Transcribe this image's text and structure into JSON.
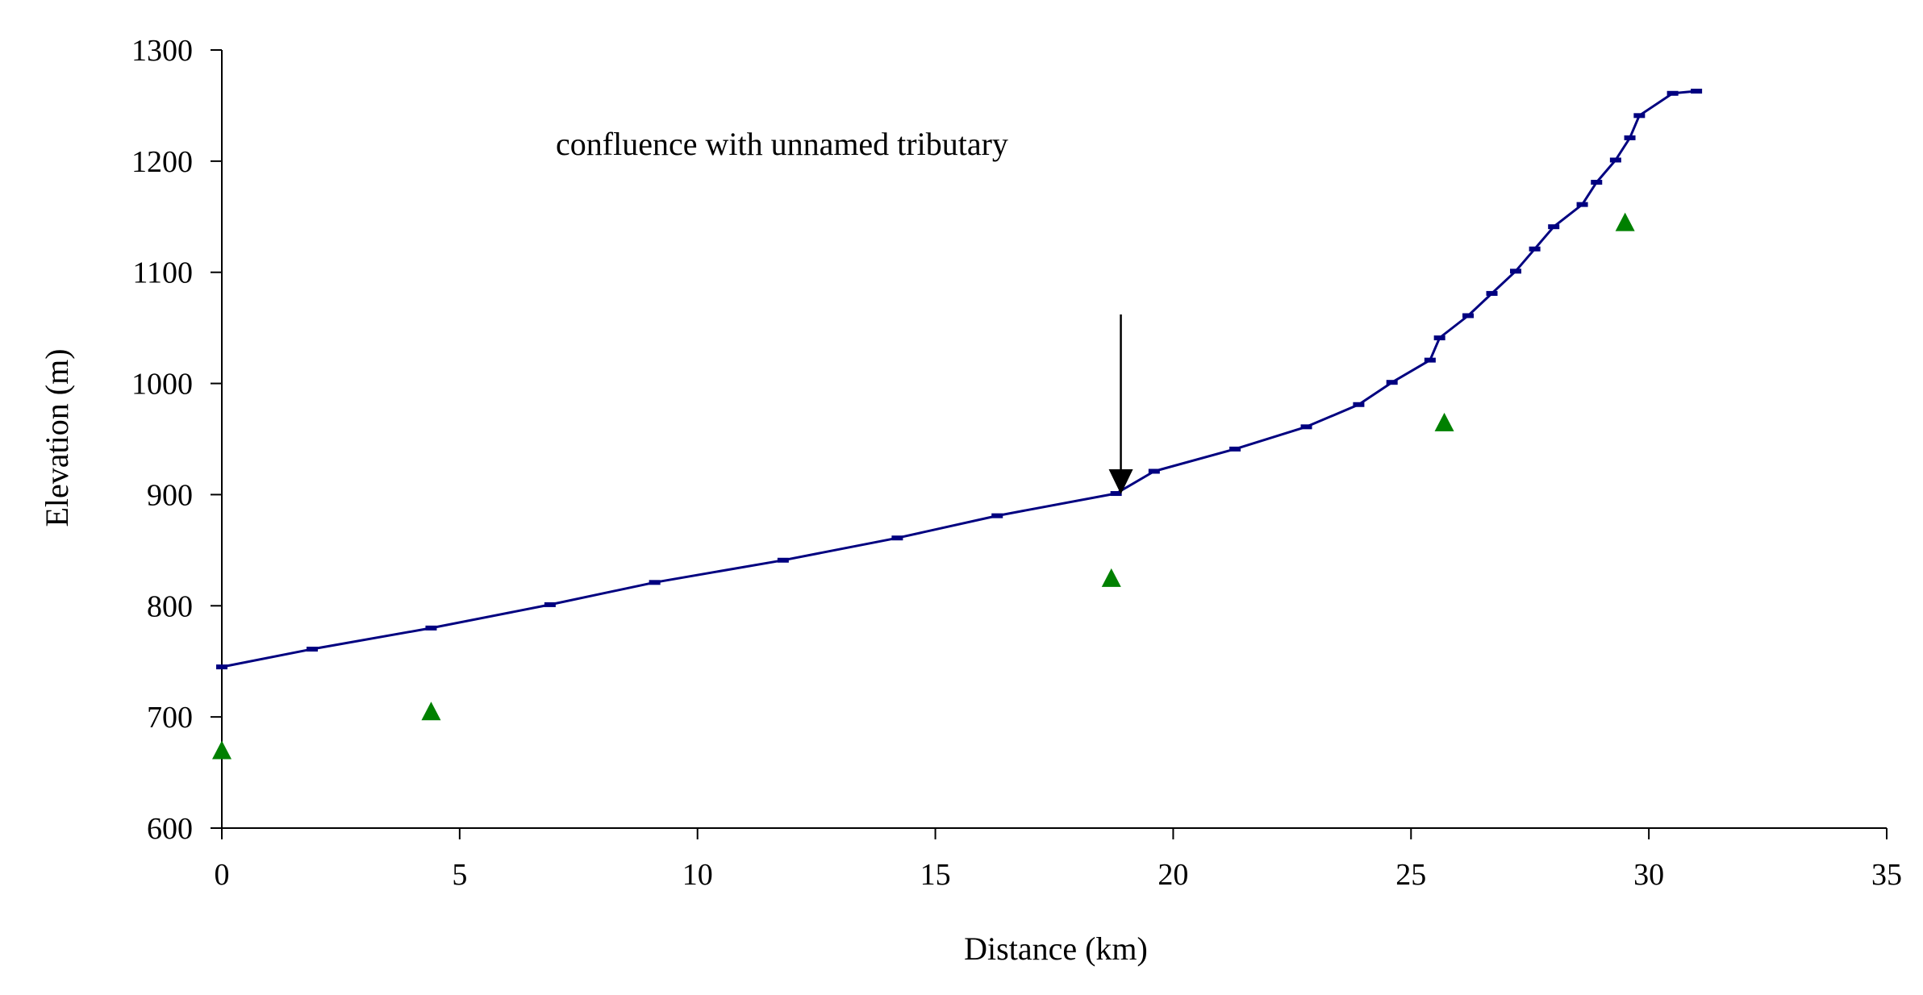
{
  "chart_data": {
    "type": "line",
    "xlabel": "Distance (km)",
    "ylabel": "Elevation (m)",
    "xlim": [
      0,
      35
    ],
    "ylim": [
      600,
      1300
    ],
    "xticks": [
      0,
      5,
      10,
      15,
      20,
      25,
      30,
      35
    ],
    "yticks": [
      600,
      700,
      800,
      900,
      1000,
      1100,
      1200,
      1300
    ],
    "grid": false,
    "legend": "none",
    "annotation": {
      "text": "confluence with unnamed tributary",
      "x": 18.9,
      "y": 901
    },
    "series": [
      {
        "style": "line",
        "color": "#000080",
        "points": [
          [
            0,
            745
          ],
          [
            1.9,
            761
          ],
          [
            4.4,
            780
          ],
          [
            6.9,
            801
          ],
          [
            9.1,
            821
          ],
          [
            11.8,
            841
          ],
          [
            14.2,
            861
          ],
          [
            16.3,
            881
          ],
          [
            18.8,
            901
          ],
          [
            19.6,
            921
          ],
          [
            21.3,
            941
          ],
          [
            22.8,
            961
          ],
          [
            23.9,
            981
          ],
          [
            24.6,
            1001
          ],
          [
            25.4,
            1021
          ],
          [
            25.6,
            1041
          ],
          [
            26.2,
            1061
          ],
          [
            26.7,
            1081
          ],
          [
            27.2,
            1101
          ],
          [
            27.6,
            1121
          ],
          [
            28.0,
            1141
          ],
          [
            28.6,
            1161
          ],
          [
            28.9,
            1181
          ],
          [
            29.3,
            1201
          ],
          [
            29.6,
            1221
          ],
          [
            29.8,
            1241
          ],
          [
            30.5,
            1261
          ],
          [
            31.0,
            1263
          ]
        ]
      },
      {
        "style": "markers",
        "marker": "triangle",
        "color": "#008000",
        "points": [
          [
            0,
            670
          ],
          [
            4.4,
            705
          ],
          [
            18.7,
            825
          ],
          [
            25.7,
            965
          ],
          [
            29.5,
            1145
          ]
        ]
      }
    ]
  }
}
